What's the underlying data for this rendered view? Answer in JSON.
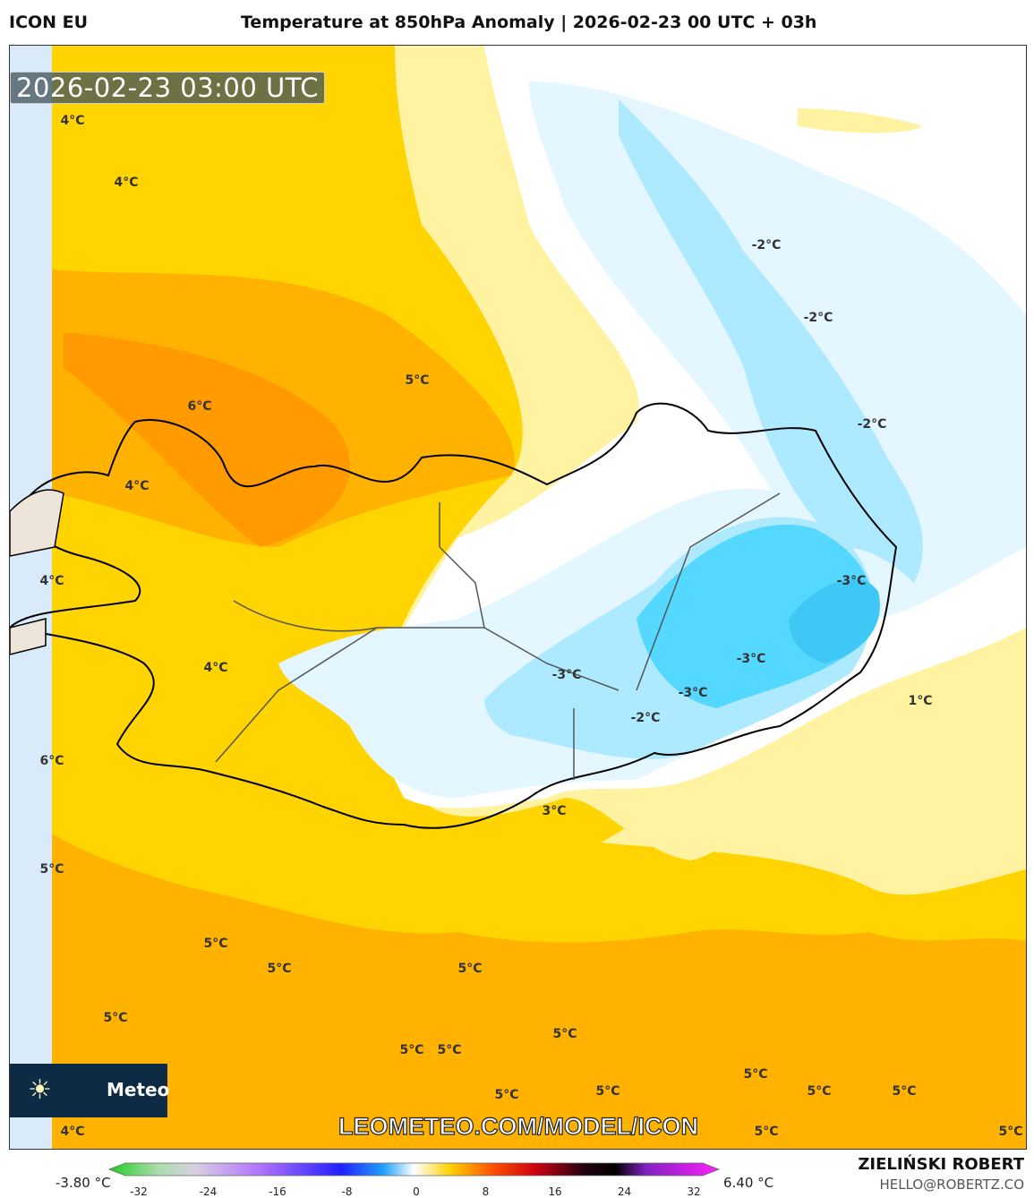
{
  "header": {
    "model": "ICON EU",
    "title": "Temperature at 850hPa Anomaly | 2026-02-23 00 UTC + 03h"
  },
  "map": {
    "timestamp": "2026-02-23 03:00 UTC",
    "watermark": "LEOMETEO.COM/MODEL/ICON",
    "logo": {
      "icon": "sun-icon",
      "text": "Meteo"
    },
    "contour_labels": [
      "4°C",
      "4°C",
      "-2°C",
      "-2°C",
      "5°C",
      "6°C",
      "-2°C",
      "4°C",
      "-3°C",
      "4°C",
      "-3°C",
      "4°C",
      "-3°C",
      "-3°C",
      "1°C",
      "-2°C",
      "6°C",
      "3°C",
      "5°C",
      "5°C",
      "5°C",
      "5°C",
      "5°C",
      "5°C",
      "5°C",
      "5°C",
      "5°C",
      "5°C",
      "5°C",
      "5°C",
      "5°C",
      "5°C",
      "4°C",
      "5°C"
    ],
    "colors": {
      "warm_max": "#ff9a00",
      "warm": "#ffb300",
      "mild": "#ffd400",
      "slight": "#fff2a0",
      "neutral": "#ffffff",
      "cool": "#e4f6ff",
      "cold": "#aeeaff",
      "colder": "#55d8ff",
      "land_outline": "#000000"
    }
  },
  "colorbar": {
    "min_label": "-3.80 °C",
    "max_label": "6.40 °C",
    "ticks": [
      "-32",
      "-24",
      "-16",
      "-8",
      "0",
      "8",
      "16",
      "24",
      "32"
    ]
  },
  "credits": {
    "author": "ZIELIŃSKI ROBERT",
    "email": "HELLO@ROBERTZ.CO"
  }
}
